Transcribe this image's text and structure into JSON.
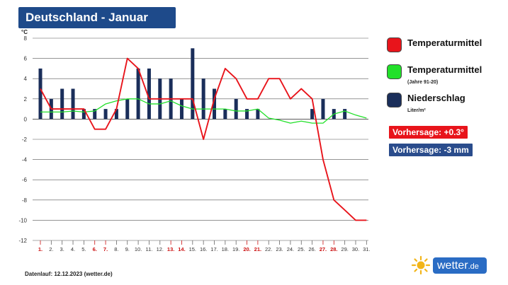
{
  "header": {
    "title": "Deutschland - Januar"
  },
  "legend": {
    "items": [
      {
        "label": "Temperaturmittel",
        "sub": "",
        "color": "#e8141b"
      },
      {
        "label": "Temperaturmittel",
        "sub": "(Jahre 91-20)",
        "color": "#22e02a"
      },
      {
        "label": "Niederschlag",
        "sub": "Liter/m²",
        "color": "#1a2e5a"
      }
    ]
  },
  "forecast": {
    "temperature": {
      "text": "Vorhersage: +0.3°",
      "color": "#e8141b"
    },
    "precipitation": {
      "text": "Vorhersage: -3 mm",
      "color": "#2a4c8c"
    }
  },
  "footer": {
    "source": "Datenlauf: 12.12.2023 (wetter.de)"
  },
  "logo": {
    "brand": "wetter",
    "suffix": ".de",
    "icon": "sun-icon"
  },
  "chart_data": {
    "type": "bar",
    "ylabel": "°C",
    "ylim": [
      -12,
      8
    ],
    "yticks": [
      8,
      6,
      4,
      2,
      0,
      -2,
      -4,
      -6,
      -8,
      -10,
      -12
    ],
    "grid": true,
    "legend_position": "right",
    "categories": [
      "1.",
      "2.",
      "3.",
      "4.",
      "5.",
      "6.",
      "7.",
      "8.",
      "9.",
      "10.",
      "11.",
      "12.",
      "13.",
      "14.",
      "15.",
      "16.",
      "17.",
      "18.",
      "19.",
      "20.",
      "21.",
      "22.",
      "23.",
      "24.",
      "25.",
      "26.",
      "27.",
      "28.",
      "29.",
      "30.",
      "31."
    ],
    "highlight_days": [
      1,
      6,
      7,
      13,
      14,
      20,
      21,
      27,
      28
    ],
    "highlight_color": "#cc1111",
    "series": [
      {
        "name": "Niederschlag",
        "type": "bar",
        "color": "#1a2e5a",
        "values": [
          5,
          2,
          3,
          3,
          1,
          1,
          1,
          1,
          2,
          5,
          5,
          4,
          4,
          2,
          7,
          4,
          3,
          1,
          2,
          1,
          1,
          null,
          null,
          null,
          null,
          1,
          2,
          1,
          1,
          null,
          null
        ]
      },
      {
        "name": "Temperaturmittel",
        "type": "line",
        "color": "#e8141b",
        "values": [
          3,
          1,
          1,
          1,
          1,
          -1,
          -1,
          1,
          6,
          5,
          2,
          2,
          2,
          2,
          2,
          -2,
          2,
          5,
          4,
          2,
          2,
          4,
          4,
          2,
          3,
          2,
          -4,
          -8,
          -9,
          -10,
          -10
        ]
      },
      {
        "name": "Temperaturmittel (Jahre 91-20)",
        "type": "line",
        "color": "#22e02a",
        "values": [
          0.7,
          0.7,
          0.7,
          0.8,
          0.7,
          0.8,
          1.5,
          1.8,
          2.0,
          2.0,
          1.5,
          1.5,
          1.8,
          1.3,
          1.0,
          1.0,
          1.0,
          1.0,
          0.8,
          0.8,
          1.0,
          0.1,
          -0.1,
          -0.4,
          -0.2,
          -0.4,
          -0.4,
          0.5,
          0.8,
          0.4,
          0.1
        ]
      }
    ]
  }
}
